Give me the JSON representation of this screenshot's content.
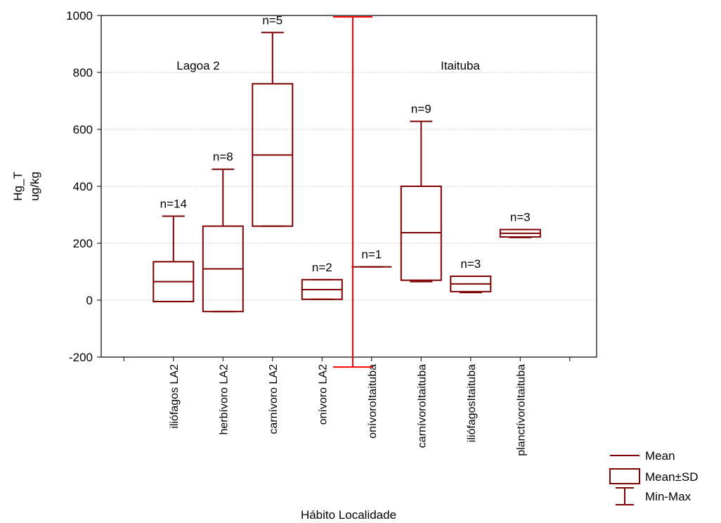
{
  "chart_data": {
    "type": "box",
    "ylabel_lines": [
      "Hg_T",
      "ug/kg"
    ],
    "xlabel": "Hábito Localidade",
    "ylim": [
      -200,
      1000
    ],
    "yticks": [
      -200,
      0,
      200,
      400,
      600,
      800,
      1000
    ],
    "grid": true,
    "color": "#7f0000",
    "divider_color": "#ff0000",
    "categories": [
      "iliófagos LA2",
      "herbívoro LA2",
      "carnívoro LA2",
      "onívoro LA2",
      "onívoroItaituba",
      "carnívoroItaituba",
      "iliófagosItaituba",
      "planctívoroItaituba"
    ],
    "boxes": [
      {
        "mean": 65,
        "sd_low": -5,
        "sd_high": 135,
        "min": -5,
        "max": 295,
        "n_label": "n=14"
      },
      {
        "mean": 110,
        "sd_low": -40,
        "sd_high": 260,
        "min": -40,
        "max": 460,
        "n_label": "n=8"
      },
      {
        "mean": 510,
        "sd_low": 260,
        "sd_high": 760,
        "min": 260,
        "max": 940,
        "n_label": "n=5"
      },
      {
        "mean": 37,
        "sd_low": 3,
        "sd_high": 72,
        "min": 3,
        "max": 72,
        "n_label": "n=2"
      },
      {
        "mean": 117,
        "sd_low": 117,
        "sd_high": 117,
        "min": 117,
        "max": 117,
        "n_label": "n=1"
      },
      {
        "mean": 237,
        "sd_low": 70,
        "sd_high": 400,
        "min": 65,
        "max": 628,
        "n_label": "n=9"
      },
      {
        "mean": 57,
        "sd_low": 30,
        "sd_high": 84,
        "min": 27,
        "max": 84,
        "n_label": "n=3"
      },
      {
        "mean": 235,
        "sd_low": 222,
        "sd_high": 248,
        "min": 220,
        "max": 248,
        "n_label": "n=3"
      }
    ],
    "divider": {
      "min": -235,
      "max": 995
    },
    "region_labels": [
      "Lagoa 2",
      "Itaituba"
    ],
    "legend": {
      "placement": "bottom-right",
      "entries": [
        "Mean",
        "Mean±SD",
        "Min-Max"
      ]
    }
  }
}
